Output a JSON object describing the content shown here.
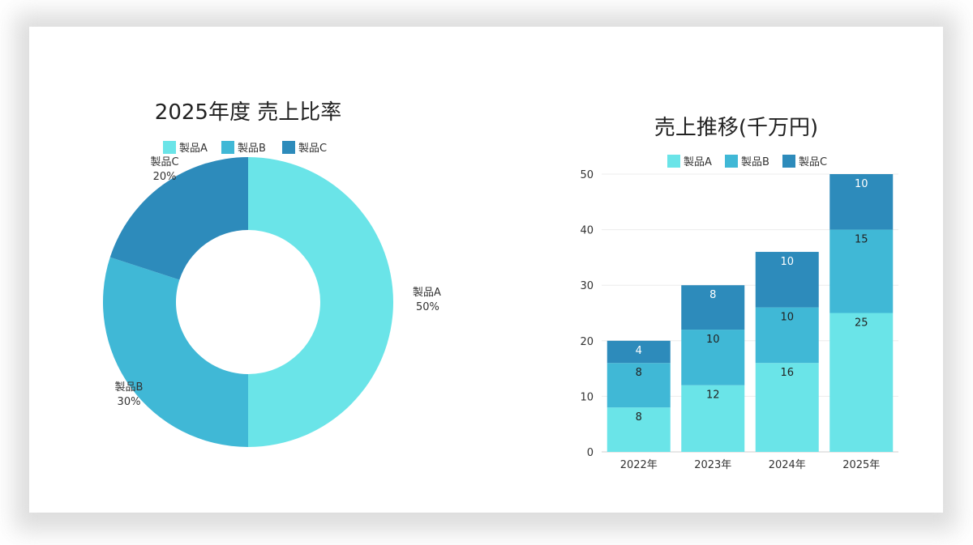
{
  "colors": {
    "a": "#6ae4e8",
    "b": "#40b8d6",
    "c": "#2d8bbb"
  },
  "chart_data": [
    {
      "type": "pie",
      "variant": "donut",
      "title": "2025年度 売上比率",
      "categories": [
        "製品A",
        "製品B",
        "製品C"
      ],
      "values": [
        50,
        30,
        20
      ],
      "labels": [
        "50%",
        "30%",
        "20%"
      ],
      "legend": [
        "製品A",
        "製品B",
        "製品C"
      ],
      "legend_position": "top"
    },
    {
      "type": "bar",
      "stacked": true,
      "title": "売上推移(千万円)",
      "categories": [
        "2022年",
        "2023年",
        "2024年",
        "2025年"
      ],
      "series": [
        {
          "name": "製品A",
          "values": [
            8,
            12,
            16,
            25
          ]
        },
        {
          "name": "製品B",
          "values": [
            8,
            10,
            10,
            15
          ]
        },
        {
          "name": "製品C",
          "values": [
            4,
            8,
            10,
            10
          ]
        }
      ],
      "ylim": [
        0,
        50
      ],
      "yticks": [
        0,
        10,
        20,
        30,
        40,
        50
      ],
      "grid": true,
      "legend_position": "top"
    }
  ]
}
